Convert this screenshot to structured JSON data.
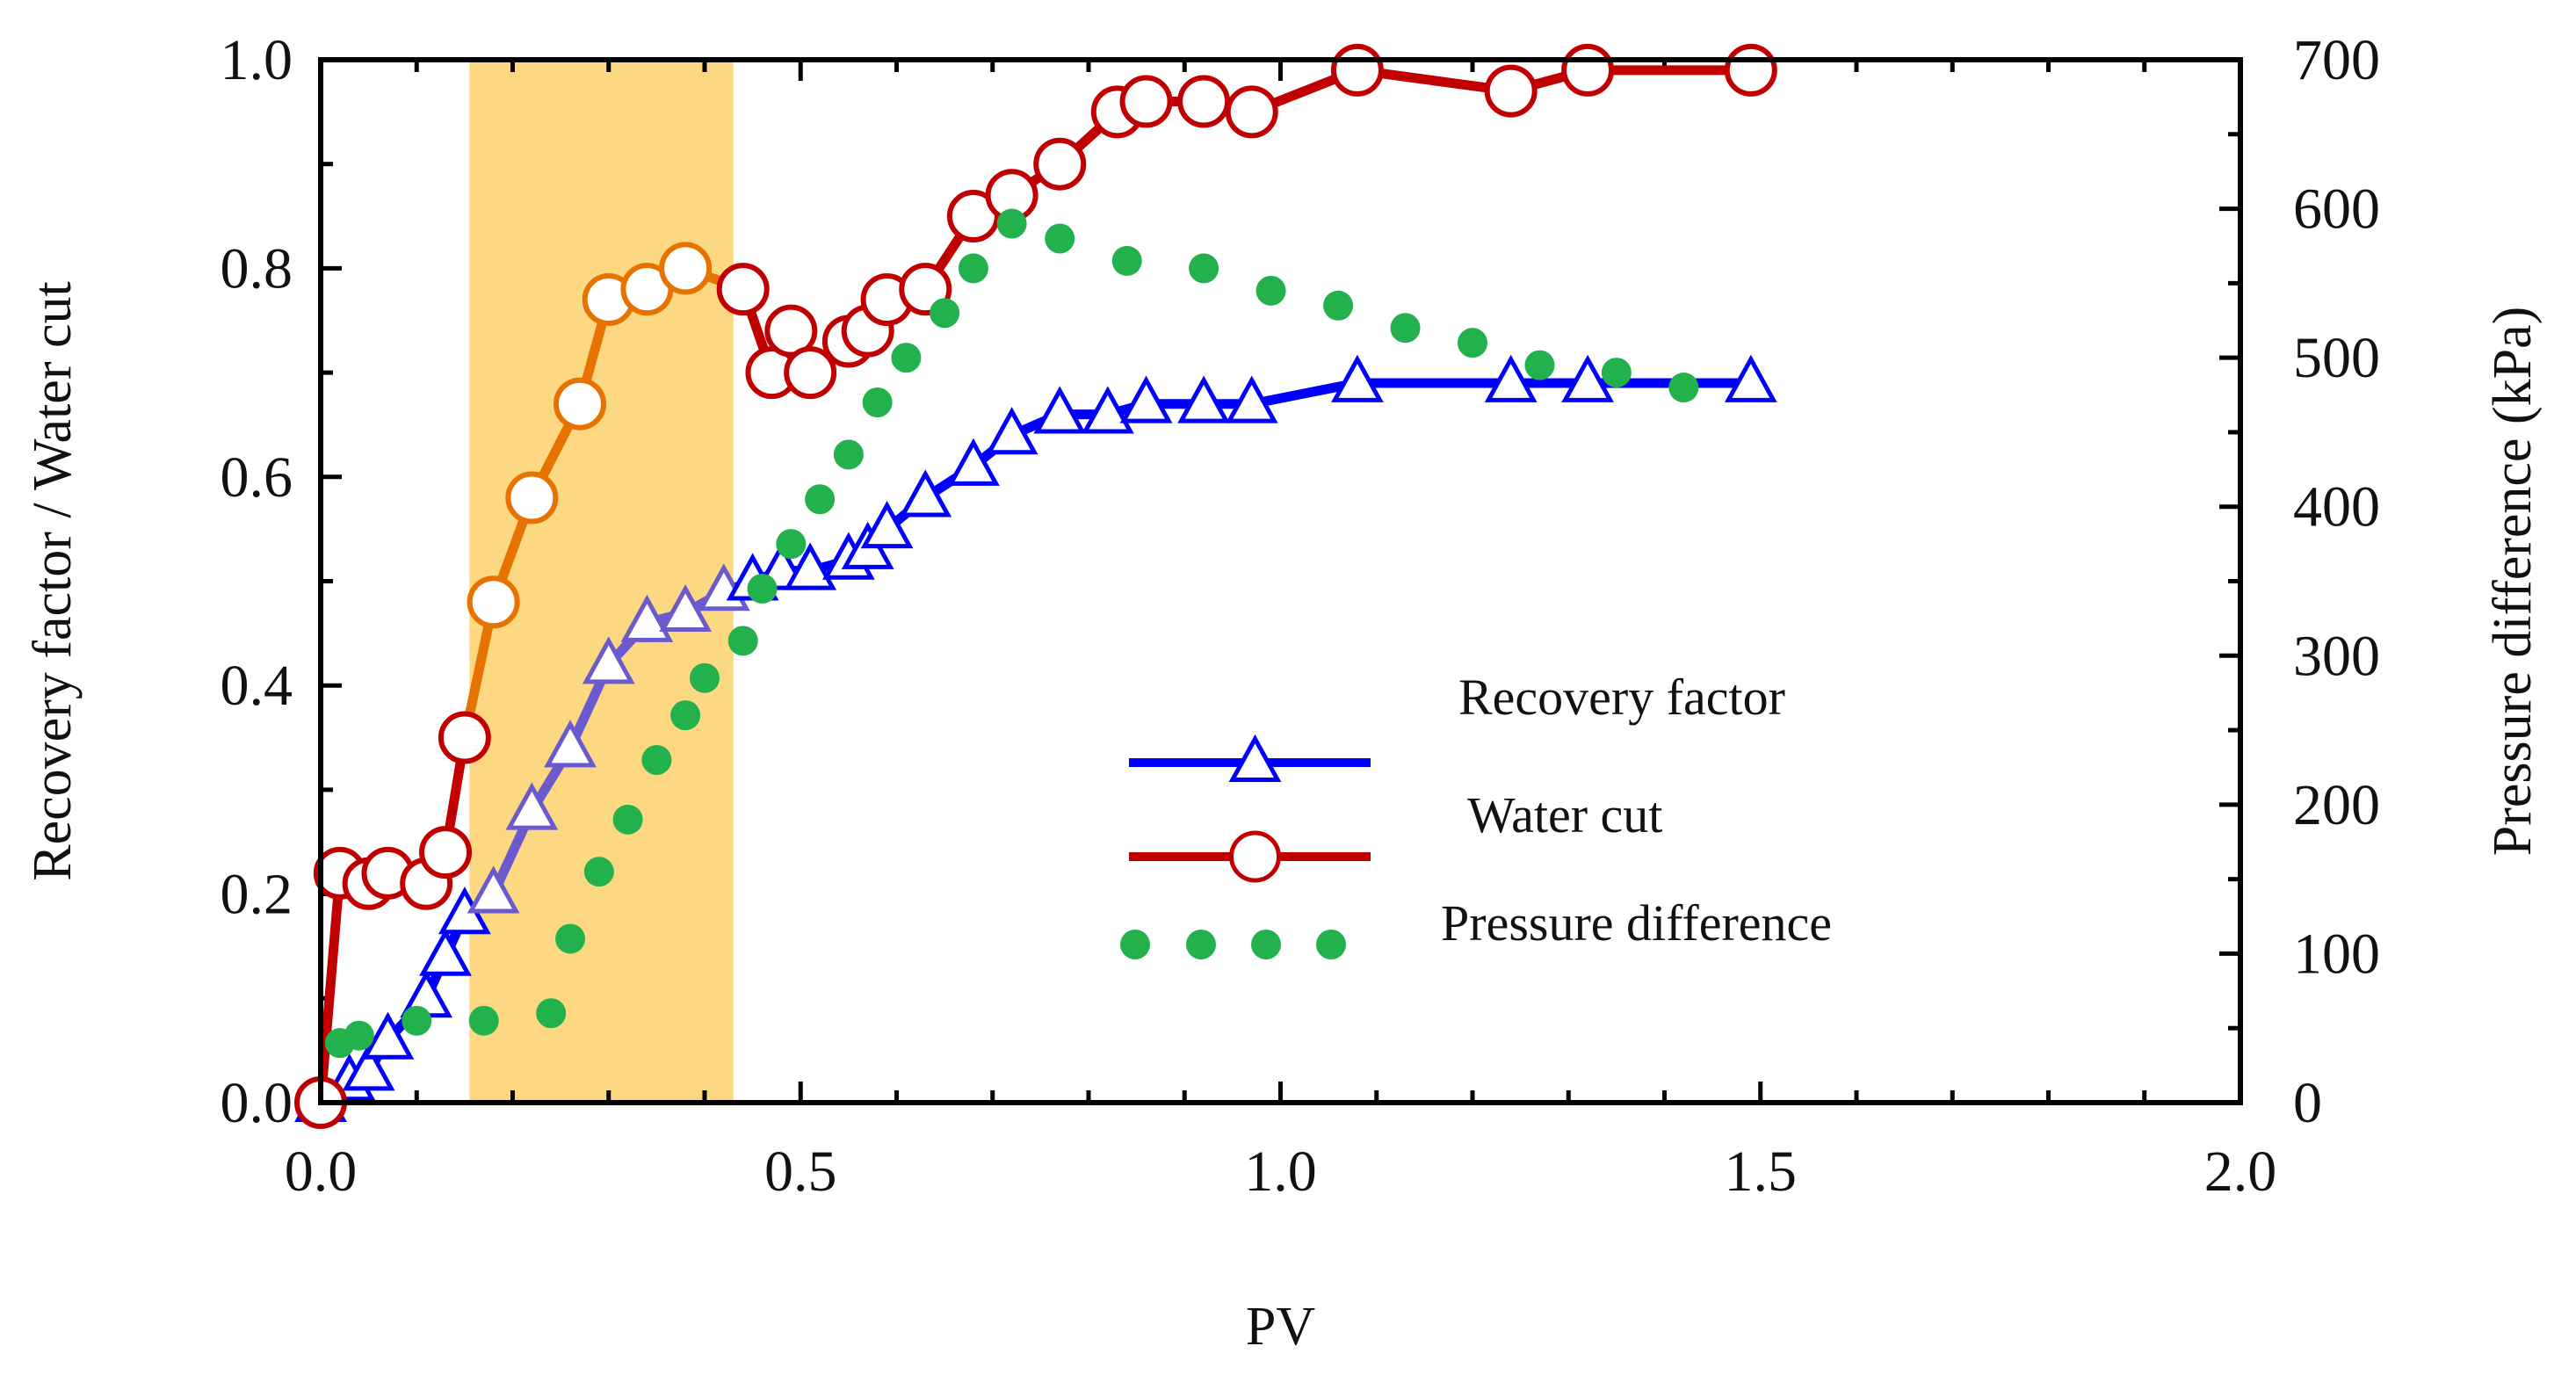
{
  "chart_data": {
    "type": "line",
    "title": "",
    "xlabel": "PV",
    "ylabel": "Recovery factor / Water cut",
    "y2label": "Pressure difference (kPa)",
    "xlim": [
      0,
      2.0
    ],
    "ylim": [
      0,
      1.0
    ],
    "y2lim": [
      0,
      700
    ],
    "xticks": [
      "0.0",
      "0.5",
      "1.0",
      "1.5",
      "2.0"
    ],
    "yticks": [
      "0.0",
      "0.2",
      "0.4",
      "0.6",
      "0.8",
      "1.0"
    ],
    "y2ticks": [
      "0",
      "100",
      "200",
      "300",
      "400",
      "500",
      "600",
      "700"
    ],
    "highlight_band": {
      "x": [
        0.155,
        0.43
      ],
      "color": "#fcd883"
    },
    "legend_position": "center-right",
    "series": [
      {
        "name": "Recovery factor",
        "axis": "left",
        "color": "#0000ff",
        "segment_color": "#6a5acd",
        "segment_range": [
          0.155,
          0.43
        ],
        "marker": "triangle",
        "x": [
          0.0,
          0.03,
          0.05,
          0.07,
          0.11,
          0.13,
          0.15,
          0.18,
          0.22,
          0.26,
          0.3,
          0.34,
          0.38,
          0.42,
          0.45,
          0.48,
          0.51,
          0.55,
          0.57,
          0.59,
          0.63,
          0.68,
          0.72,
          0.77,
          0.82,
          0.86,
          0.92,
          0.97,
          1.08,
          1.24,
          1.32,
          1.49
        ],
        "y": [
          0.0,
          0.02,
          0.03,
          0.06,
          0.1,
          0.14,
          0.18,
          0.2,
          0.28,
          0.34,
          0.42,
          0.46,
          0.47,
          0.49,
          0.5,
          0.51,
          0.51,
          0.52,
          0.53,
          0.55,
          0.58,
          0.61,
          0.64,
          0.66,
          0.66,
          0.67,
          0.67,
          0.67,
          0.69,
          0.69,
          0.69,
          0.69
        ]
      },
      {
        "name": "Water cut",
        "axis": "left",
        "color": "#c00000",
        "segment_color": "#e67300",
        "segment_range": [
          0.155,
          0.43
        ],
        "marker": "circle-open",
        "x": [
          0.0,
          0.02,
          0.05,
          0.07,
          0.11,
          0.13,
          0.15,
          0.18,
          0.22,
          0.27,
          0.3,
          0.34,
          0.38,
          0.44,
          0.47,
          0.49,
          0.51,
          0.55,
          0.57,
          0.59,
          0.63,
          0.68,
          0.72,
          0.77,
          0.83,
          0.86,
          0.92,
          0.97,
          1.08,
          1.24,
          1.32,
          1.49
        ],
        "y": [
          0.0,
          0.22,
          0.21,
          0.22,
          0.21,
          0.24,
          0.35,
          0.48,
          0.58,
          0.67,
          0.77,
          0.78,
          0.8,
          0.78,
          0.7,
          0.74,
          0.7,
          0.73,
          0.74,
          0.77,
          0.78,
          0.85,
          0.87,
          0.9,
          0.95,
          0.96,
          0.96,
          0.95,
          0.99,
          0.97,
          0.99,
          0.99
        ]
      },
      {
        "name": "Pressure difference",
        "axis": "right",
        "color": "#22b14c",
        "marker": "dot",
        "x": [
          0.02,
          0.04,
          0.1,
          0.17,
          0.24,
          0.26,
          0.29,
          0.32,
          0.35,
          0.38,
          0.4,
          0.44,
          0.46,
          0.49,
          0.52,
          0.55,
          0.58,
          0.61,
          0.65,
          0.68,
          0.72,
          0.77,
          0.84,
          0.92,
          0.99,
          1.06,
          1.13,
          1.2,
          1.27,
          1.35,
          1.42
        ],
        "y": [
          40,
          45,
          55,
          55,
          60,
          110,
          155,
          190,
          230,
          260,
          285,
          310,
          345,
          375,
          405,
          435,
          470,
          500,
          530,
          560,
          590,
          580,
          565,
          560,
          545,
          535,
          520,
          510,
          495,
          490,
          480
        ]
      }
    ]
  }
}
